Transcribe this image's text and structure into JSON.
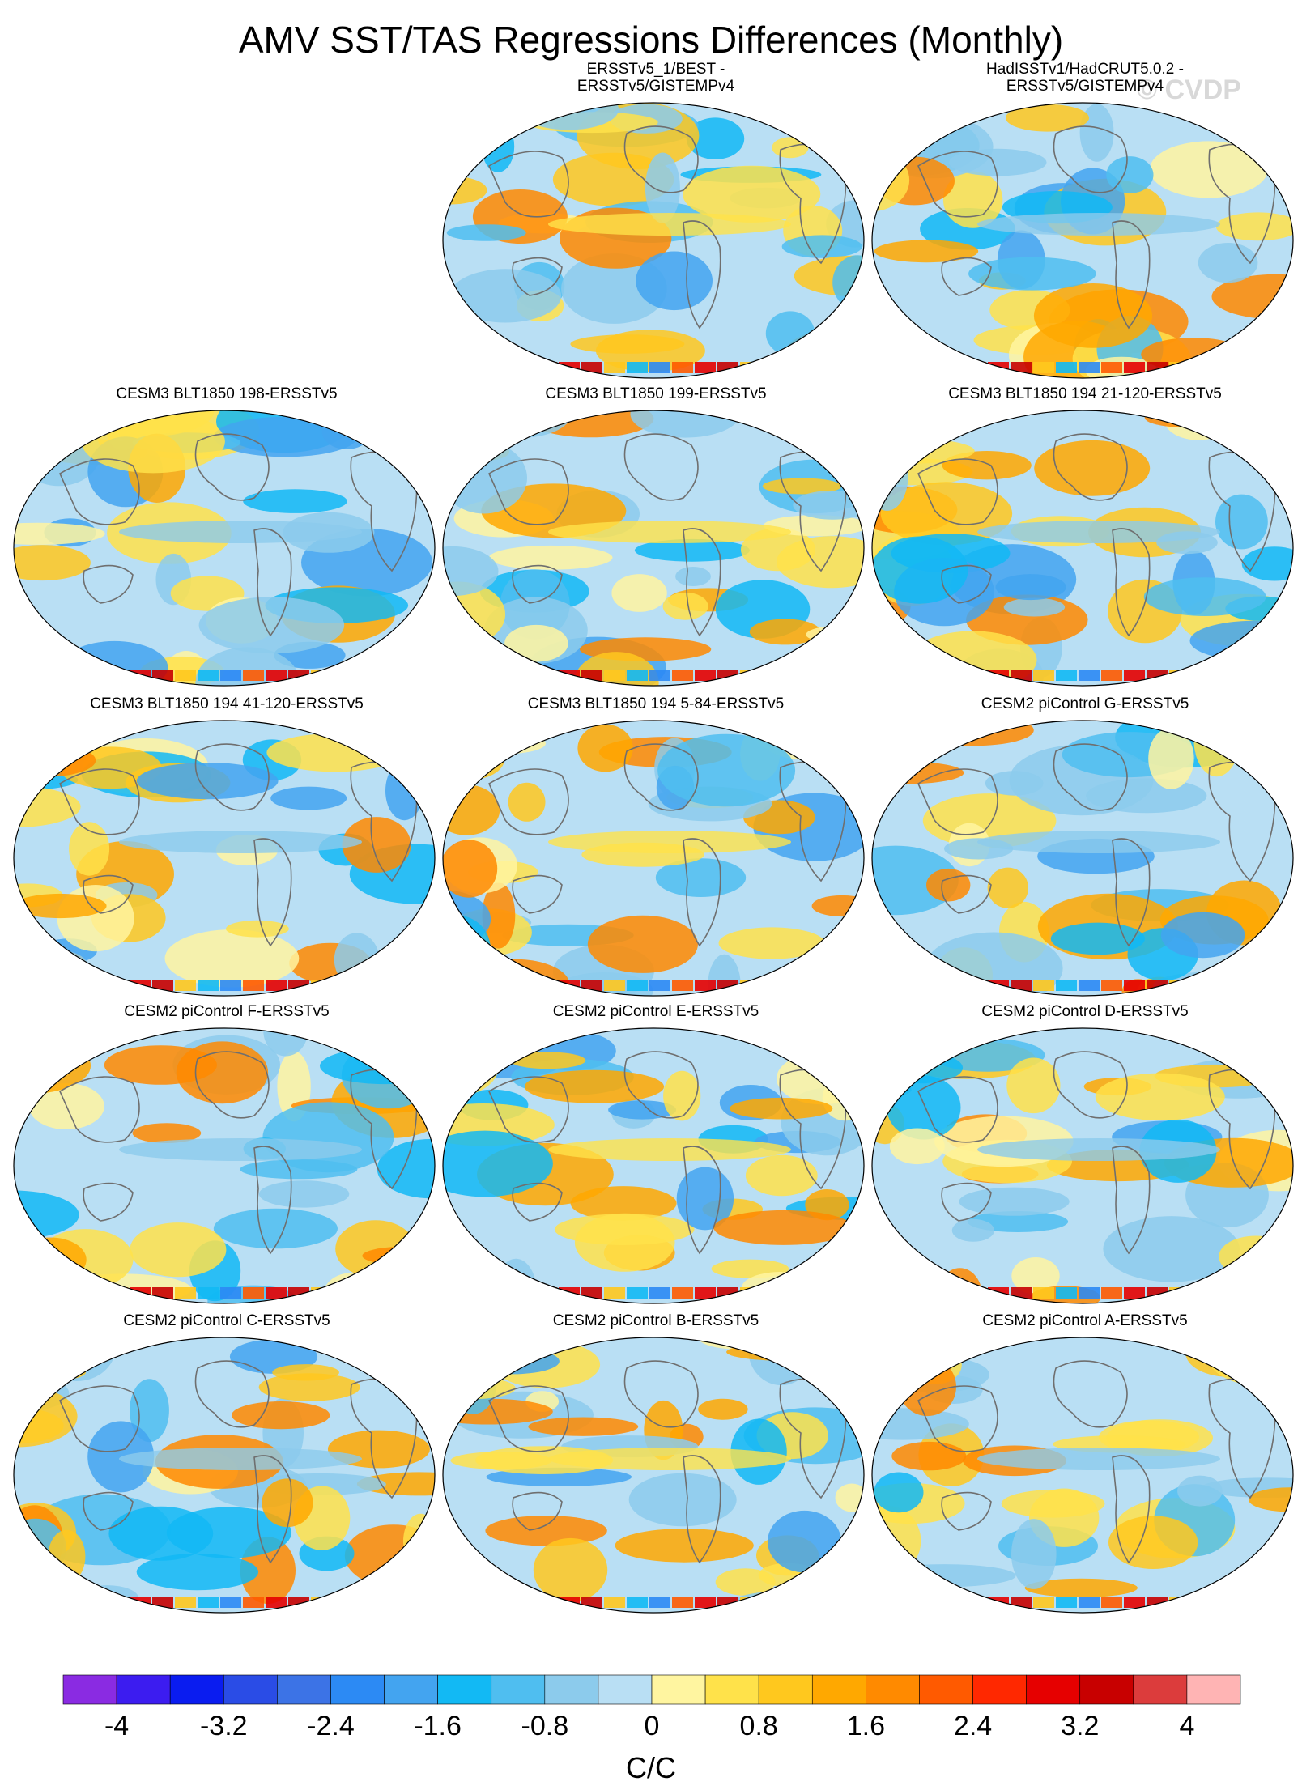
{
  "title": "AMV SST/TAS Regressions Differences (Monthly)",
  "watermark": "© CVDP",
  "colors": {
    "ocean_base": "#b9dff4",
    "land_outline": "#6f6f6f",
    "palette": [
      "#8a2be2",
      "#3c1cf0",
      "#0a1cf0",
      "#2a4ce6",
      "#3c73e6",
      "#2c8af4",
      "#43a4f0",
      "#12b9f4",
      "#4fbef0",
      "#8ccbec",
      "#b9dff4",
      "#fff5a0",
      "#ffe24a",
      "#ffc81e",
      "#ffa800",
      "#ff8a00",
      "#ff5a00",
      "#ff2800",
      "#e60000",
      "#c80000",
      "#dc3c3c",
      "#ffb4b4"
    ]
  },
  "chart_data": {
    "type": "heatmap",
    "projection": "global map (Robinson-like)",
    "colorbar": {
      "label": "C/C",
      "tick_labels": [
        "-4",
        "-3.2",
        "-2.4",
        "-1.6",
        "-0.8",
        "0",
        "0.8",
        "1.6",
        "2.4",
        "3.2",
        "4"
      ],
      "levels": [
        -4,
        -3.6,
        -3.2,
        -2.8,
        -2.4,
        -2.0,
        -1.6,
        -1.2,
        -0.8,
        -0.4,
        0,
        0.4,
        0.8,
        1.2,
        1.6,
        2.0,
        2.4,
        2.8,
        3.2,
        3.6,
        4
      ]
    },
    "panels": [
      {
        "title_lines": [
          "ERSSTv5_1/BEST -",
          "ERSSTv5/GISTEMPv4"
        ],
        "row": 0,
        "col": 1
      },
      {
        "title_lines": [
          "HadISSTv1/HadCRUT5.0.2 -",
          "ERSSTv5/GISTEMPv4"
        ],
        "row": 0,
        "col": 2
      },
      {
        "title_lines": [
          "CESM3 BLT1850 198-ERSSTv5"
        ],
        "row": 1,
        "col": 0
      },
      {
        "title_lines": [
          "CESM3 BLT1850 199-ERSSTv5"
        ],
        "row": 1,
        "col": 1
      },
      {
        "title_lines": [
          "CESM3 BLT1850 194 21-120-ERSSTv5"
        ],
        "row": 1,
        "col": 2
      },
      {
        "title_lines": [
          "CESM3 BLT1850 194 41-120-ERSSTv5"
        ],
        "row": 2,
        "col": 0
      },
      {
        "title_lines": [
          "CESM3 BLT1850 194 5-84-ERSSTv5"
        ],
        "row": 2,
        "col": 1
      },
      {
        "title_lines": [
          "CESM2 piControl G-ERSSTv5"
        ],
        "row": 2,
        "col": 2
      },
      {
        "title_lines": [
          "CESM2 piControl F-ERSSTv5"
        ],
        "row": 3,
        "col": 0
      },
      {
        "title_lines": [
          "CESM2 piControl E-ERSSTv5"
        ],
        "row": 3,
        "col": 1
      },
      {
        "title_lines": [
          "CESM2 piControl D-ERSSTv5"
        ],
        "row": 3,
        "col": 2
      },
      {
        "title_lines": [
          "CESM2 piControl C-ERSSTv5"
        ],
        "row": 4,
        "col": 0
      },
      {
        "title_lines": [
          "CESM2 piControl B-ERSSTv5"
        ],
        "row": 4,
        "col": 1
      },
      {
        "title_lines": [
          "CESM2 piControl A-ERSSTv5"
        ],
        "row": 4,
        "col": 2
      }
    ]
  }
}
